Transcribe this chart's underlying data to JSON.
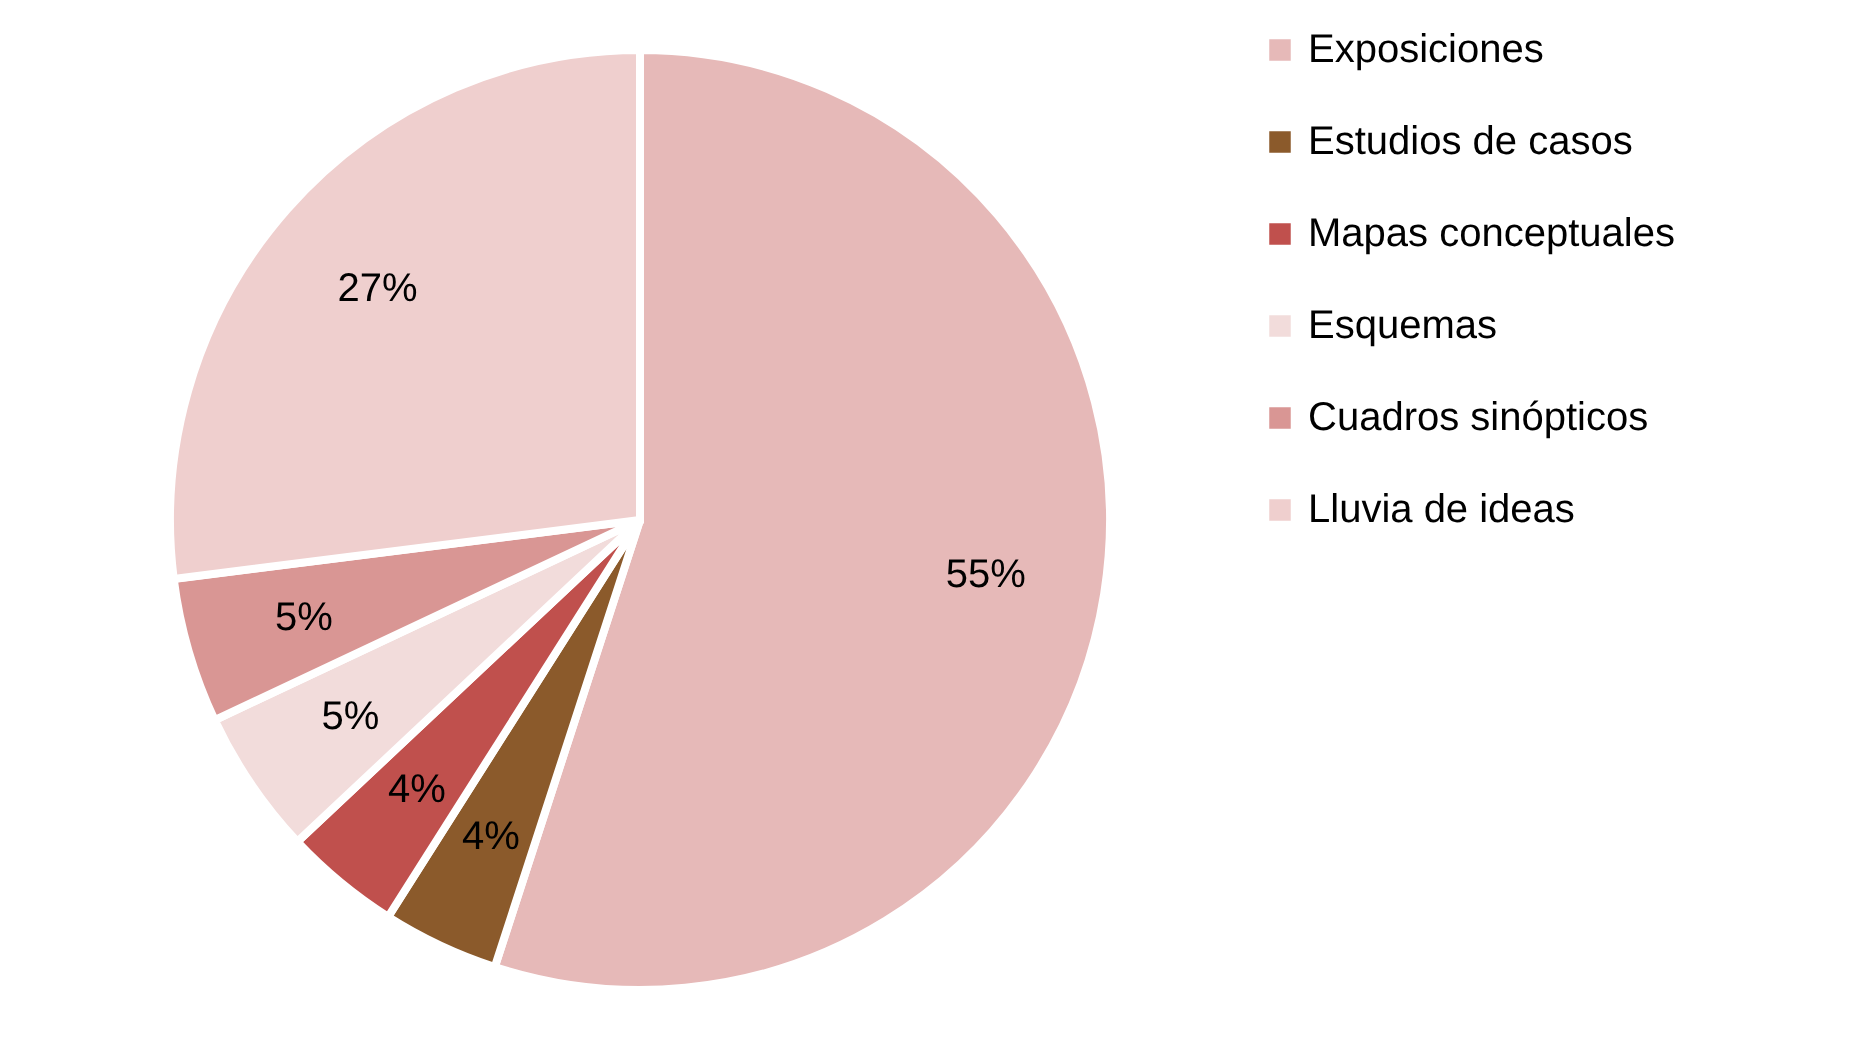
{
  "chart_data": {
    "type": "pie",
    "categories": [
      "Exposiciones",
      "Estudios de casos",
      "Mapas conceptuales",
      "Esquemas",
      "Cuadros sinópticos",
      "Lluvia de ideas"
    ],
    "values": [
      55,
      4,
      4,
      5,
      5,
      27
    ],
    "colors": [
      "#e6b9b8",
      "#8b5a2b",
      "#c0504d",
      "#f2dcdb",
      "#d99694",
      "#efcfce"
    ],
    "value_labels": [
      "55%",
      "4%",
      "4%",
      "5%",
      "5%",
      "27%"
    ],
    "legend": "right"
  }
}
